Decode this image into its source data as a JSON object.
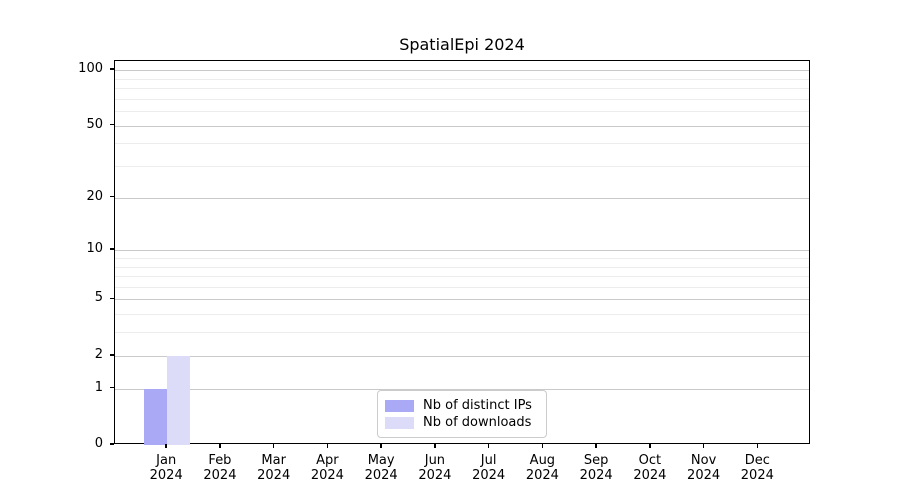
{
  "chart_data": {
    "type": "bar",
    "title": "SpatialEpi 2024",
    "x_categories": [
      "Jan",
      "Feb",
      "Mar",
      "Apr",
      "May",
      "Jun",
      "Jul",
      "Aug",
      "Sep",
      "Oct",
      "Nov",
      "Dec"
    ],
    "x_year": "2024",
    "series": [
      {
        "name": "Nb of distinct IPs",
        "color": "#a9a9f6",
        "values": [
          1,
          0,
          0,
          0,
          0,
          0,
          0,
          0,
          0,
          0,
          0,
          0
        ]
      },
      {
        "name": "Nb of downloads",
        "color": "#dcdcf8",
        "values": [
          2,
          0,
          0,
          0,
          0,
          0,
          0,
          0,
          0,
          0,
          0,
          0
        ]
      }
    ],
    "y_scale": "log1p",
    "y_axis_max": 112,
    "y_major_ticks": [
      0,
      1,
      2,
      5,
      10,
      20,
      50,
      100
    ],
    "y_minor_ticks": [
      3,
      4,
      6,
      7,
      8,
      9,
      30,
      40,
      60,
      70,
      80,
      90
    ],
    "ylim": [
      0,
      112
    ],
    "grid": "horizontal",
    "legend_position": "lower center",
    "colors": {
      "major_grid": "#cacaca",
      "minor_grid": "#ededed",
      "spine": "#000000",
      "text": "#000000"
    }
  }
}
